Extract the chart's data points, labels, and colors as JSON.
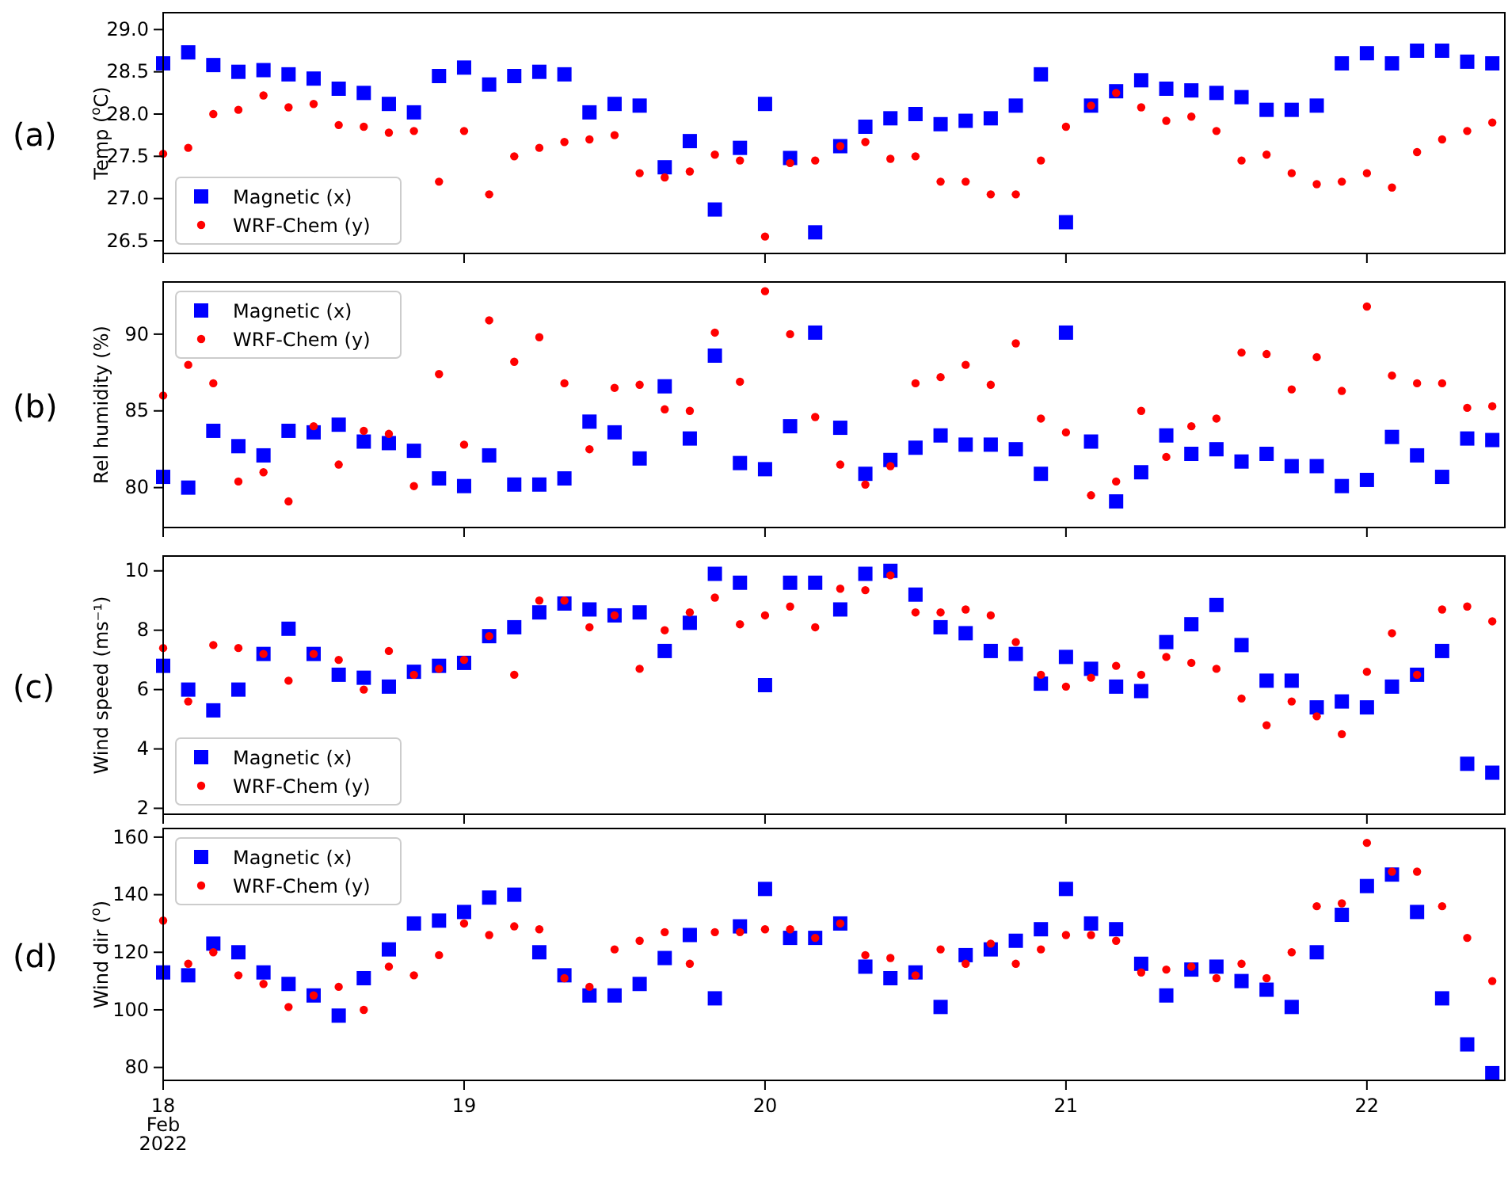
{
  "chart_data": [
    {
      "type": "scatter",
      "ylabel": "Temp ($^{o}$C)",
      "annotations": [
        "(a)"
      ],
      "legend": "bottom left",
      "tick_labels": "y",
      "x": [
        "2022-02-18T00:00",
        "2022-02-18T02:00",
        "2022-02-18T04:00",
        "2022-02-18T06:00",
        "2022-02-18T08:00",
        "2022-02-18T10:00",
        "2022-02-18T12:00",
        "2022-02-18T14:00",
        "2022-02-18T16:00",
        "2022-02-18T18:00",
        "2022-02-18T20:00",
        "2022-02-18T22:00",
        "2022-02-19T00:00",
        "2022-02-19T02:00",
        "2022-02-19T04:00",
        "2022-02-19T06:00",
        "2022-02-19T08:00",
        "2022-02-19T10:00",
        "2022-02-19T12:00",
        "2022-02-19T14:00",
        "2022-02-19T16:00",
        "2022-02-19T18:00",
        "2022-02-19T20:00",
        "2022-02-19T22:00",
        "2022-02-20T00:00",
        "2022-02-20T02:00",
        "2022-02-20T04:00",
        "2022-02-20T06:00",
        "2022-02-20T08:00",
        "2022-02-20T10:00",
        "2022-02-20T12:00",
        "2022-02-20T14:00",
        "2022-02-20T16:00",
        "2022-02-20T18:00",
        "2022-02-20T20:00",
        "2022-02-20T22:00",
        "2022-02-21T00:00",
        "2022-02-21T02:00",
        "2022-02-21T04:00",
        "2022-02-21T06:00",
        "2022-02-21T08:00",
        "2022-02-21T10:00",
        "2022-02-21T12:00",
        "2022-02-21T14:00",
        "2022-02-21T16:00",
        "2022-02-21T18:00",
        "2022-02-21T20:00",
        "2022-02-21T22:00",
        "2022-02-22T00:00",
        "2022-02-22T02:00",
        "2022-02-22T04:00",
        "2022-02-22T06:00",
        "2022-02-22T08:00",
        "2022-02-22T10:00"
      ],
      "xlim": [
        "2022-02-18T00:00",
        "2022-02-22T11:00"
      ],
      "xticks": [
        {
          "value": "2022-02-18",
          "label": null
        },
        {
          "value": "2022-02-19",
          "label": null
        },
        {
          "value": "2022-02-20",
          "label": null
        },
        {
          "value": "2022-02-21",
          "label": null
        },
        {
          "value": "2022-02-22",
          "label": null
        }
      ],
      "ylim": [
        26.35,
        29.2
      ],
      "yticks": [
        26.5,
        {
          "value": 27,
          "label": "27.0"
        },
        27.5,
        {
          "value": 28,
          "label": "28.0"
        },
        28.5,
        {
          "value": 29,
          "label": "29.0"
        }
      ],
      "series": [
        {
          "name": "Magnetic (x)",
          "color": "#0000ff",
          "marker": "square",
          "values": [
            28.6,
            28.73,
            28.58,
            28.5,
            28.52,
            28.47,
            28.42,
            28.3,
            28.25,
            28.12,
            28.02,
            28.45,
            28.55,
            28.35,
            28.45,
            28.5,
            28.47,
            28.02,
            28.12,
            28.1,
            27.37,
            27.68,
            26.87,
            27.6,
            28.12,
            27.48,
            26.6,
            27.62,
            27.85,
            27.95,
            28.0,
            27.88,
            27.92,
            27.95,
            28.1,
            28.47,
            26.72,
            28.1,
            28.27,
            28.4,
            28.3,
            28.28,
            28.25,
            28.2,
            28.05,
            28.05,
            28.1,
            28.6,
            28.72,
            28.6,
            28.75,
            28.75,
            28.62,
            28.6
          ]
        },
        {
          "name": "WRF-Chem (y)",
          "color": "#ff0000",
          "marker": "circle",
          "values": [
            27.53,
            27.6,
            28.0,
            28.05,
            28.22,
            28.08,
            28.12,
            27.87,
            27.85,
            27.78,
            27.8,
            27.2,
            27.8,
            27.05,
            27.5,
            27.6,
            27.67,
            27.7,
            27.75,
            27.3,
            27.25,
            27.32,
            27.52,
            27.45,
            26.55,
            27.42,
            27.45,
            27.62,
            27.67,
            27.47,
            27.5,
            27.2,
            27.2,
            27.05,
            27.05,
            27.45,
            27.85,
            28.1,
            28.25,
            28.08,
            27.92,
            27.97,
            27.8,
            27.45,
            27.52,
            27.3,
            27.17,
            27.2,
            27.3,
            27.13,
            27.55,
            27.7,
            27.8,
            27.9
          ]
        }
      ]
    },
    {
      "type": "scatter",
      "ylabel": "Rel humidity (%)",
      "annotations": [
        "(b)"
      ],
      "legend": "top left",
      "tick_labels": "y",
      "x": [
        "2022-02-18T00:00",
        "2022-02-18T02:00",
        "2022-02-18T04:00",
        "2022-02-18T06:00",
        "2022-02-18T08:00",
        "2022-02-18T10:00",
        "2022-02-18T12:00",
        "2022-02-18T14:00",
        "2022-02-18T16:00",
        "2022-02-18T18:00",
        "2022-02-18T20:00",
        "2022-02-18T22:00",
        "2022-02-19T00:00",
        "2022-02-19T02:00",
        "2022-02-19T04:00",
        "2022-02-19T06:00",
        "2022-02-19T08:00",
        "2022-02-19T10:00",
        "2022-02-19T12:00",
        "2022-02-19T14:00",
        "2022-02-19T16:00",
        "2022-02-19T18:00",
        "2022-02-19T20:00",
        "2022-02-19T22:00",
        "2022-02-20T00:00",
        "2022-02-20T02:00",
        "2022-02-20T04:00",
        "2022-02-20T06:00",
        "2022-02-20T08:00",
        "2022-02-20T10:00",
        "2022-02-20T12:00",
        "2022-02-20T14:00",
        "2022-02-20T16:00",
        "2022-02-20T18:00",
        "2022-02-20T20:00",
        "2022-02-20T22:00",
        "2022-02-21T00:00",
        "2022-02-21T02:00",
        "2022-02-21T04:00",
        "2022-02-21T06:00",
        "2022-02-21T08:00",
        "2022-02-21T10:00",
        "2022-02-21T12:00",
        "2022-02-21T14:00",
        "2022-02-21T16:00",
        "2022-02-21T18:00",
        "2022-02-21T20:00",
        "2022-02-21T22:00",
        "2022-02-22T00:00",
        "2022-02-22T02:00",
        "2022-02-22T04:00",
        "2022-02-22T06:00",
        "2022-02-22T08:00",
        "2022-02-22T10:00"
      ],
      "xlim": [
        "2022-02-18T00:00",
        "2022-02-22T11:00"
      ],
      "xticks": [
        {
          "value": "2022-02-18",
          "label": null
        },
        {
          "value": "2022-02-19",
          "label": null
        },
        {
          "value": "2022-02-20",
          "label": null
        },
        {
          "value": "2022-02-21",
          "label": null
        },
        {
          "value": "2022-02-22",
          "label": null
        }
      ],
      "ylim": [
        77.4,
        93.4
      ],
      "yticks": [
        80,
        85,
        90
      ],
      "series": [
        {
          "name": "Magnetic (x)",
          "color": "#0000ff",
          "marker": "square",
          "values": [
            80.7,
            80.0,
            83.7,
            82.7,
            82.1,
            83.7,
            83.6,
            84.1,
            83.0,
            82.9,
            82.4,
            80.6,
            80.1,
            82.1,
            80.2,
            80.2,
            80.6,
            84.3,
            83.6,
            81.9,
            86.6,
            83.2,
            88.6,
            81.6,
            81.2,
            84.0,
            90.1,
            83.9,
            80.9,
            81.8,
            82.6,
            83.4,
            82.8,
            82.8,
            82.5,
            80.9,
            90.1,
            83.0,
            79.1,
            81.0,
            83.4,
            82.2,
            82.5,
            81.7,
            82.2,
            81.4,
            81.4,
            80.1,
            80.5,
            83.3,
            82.1,
            80.7,
            83.2,
            83.1
          ]
        },
        {
          "name": "WRF-Chem (y)",
          "color": "#ff0000",
          "marker": "circle",
          "values": [
            86.0,
            88.0,
            86.8,
            80.4,
            81.0,
            79.1,
            84.0,
            81.5,
            83.7,
            83.5,
            80.1,
            87.4,
            82.8,
            90.9,
            88.2,
            89.8,
            86.8,
            82.5,
            86.5,
            86.7,
            85.1,
            85.0,
            90.1,
            86.9,
            92.8,
            90.0,
            84.6,
            81.5,
            80.2,
            81.4,
            86.8,
            87.2,
            88.0,
            86.7,
            89.4,
            84.5,
            83.6,
            79.5,
            80.4,
            85.0,
            82.0,
            84.0,
            84.5,
            88.8,
            88.7,
            86.4,
            88.5,
            86.3,
            91.8,
            87.3,
            86.8,
            86.8,
            85.2,
            85.3
          ]
        }
      ]
    },
    {
      "type": "scatter",
      "ylabel": "Wind speed (ms⁻¹)",
      "annotations": [
        "(c)"
      ],
      "legend": "bottom left",
      "tick_labels": "y",
      "x": [
        "2022-02-18T00:00",
        "2022-02-18T02:00",
        "2022-02-18T04:00",
        "2022-02-18T06:00",
        "2022-02-18T08:00",
        "2022-02-18T10:00",
        "2022-02-18T12:00",
        "2022-02-18T14:00",
        "2022-02-18T16:00",
        "2022-02-18T18:00",
        "2022-02-18T20:00",
        "2022-02-18T22:00",
        "2022-02-19T00:00",
        "2022-02-19T02:00",
        "2022-02-19T04:00",
        "2022-02-19T06:00",
        "2022-02-19T08:00",
        "2022-02-19T10:00",
        "2022-02-19T12:00",
        "2022-02-19T14:00",
        "2022-02-19T16:00",
        "2022-02-19T18:00",
        "2022-02-19T20:00",
        "2022-02-19T22:00",
        "2022-02-20T00:00",
        "2022-02-20T02:00",
        "2022-02-20T04:00",
        "2022-02-20T06:00",
        "2022-02-20T08:00",
        "2022-02-20T10:00",
        "2022-02-20T12:00",
        "2022-02-20T14:00",
        "2022-02-20T16:00",
        "2022-02-20T18:00",
        "2022-02-20T20:00",
        "2022-02-20T22:00",
        "2022-02-21T00:00",
        "2022-02-21T02:00",
        "2022-02-21T04:00",
        "2022-02-21T06:00",
        "2022-02-21T08:00",
        "2022-02-21T10:00",
        "2022-02-21T12:00",
        "2022-02-21T14:00",
        "2022-02-21T16:00",
        "2022-02-21T18:00",
        "2022-02-21T20:00",
        "2022-02-21T22:00",
        "2022-02-22T00:00",
        "2022-02-22T02:00",
        "2022-02-22T04:00",
        "2022-02-22T06:00",
        "2022-02-22T08:00",
        "2022-02-22T10:00"
      ],
      "xlim": [
        "2022-02-18T00:00",
        "2022-02-22T11:00"
      ],
      "xticks": [
        {
          "value": "2022-02-18",
          "label": null
        },
        {
          "value": "2022-02-19",
          "label": null
        },
        {
          "value": "2022-02-20",
          "label": null
        },
        {
          "value": "2022-02-21",
          "label": null
        },
        {
          "value": "2022-02-22",
          "label": null
        }
      ],
      "ylim": [
        1.8,
        10.5
      ],
      "yticks": [
        2,
        4,
        6,
        8,
        10
      ],
      "series": [
        {
          "name": "Magnetic (x)",
          "color": "#0000ff",
          "marker": "square",
          "values": [
            6.8,
            6.0,
            5.3,
            6.0,
            7.2,
            8.05,
            7.2,
            6.5,
            6.4,
            6.1,
            6.6,
            6.8,
            6.9,
            7.8,
            8.1,
            8.6,
            8.9,
            8.7,
            8.5,
            8.6,
            7.3,
            8.25,
            9.9,
            9.6,
            6.15,
            9.6,
            9.6,
            8.7,
            9.9,
            10.0,
            9.2,
            8.1,
            7.9,
            7.3,
            7.2,
            6.2,
            7.1,
            6.7,
            6.1,
            5.95,
            7.6,
            8.2,
            8.85,
            7.5,
            6.3,
            6.3,
            5.4,
            5.6,
            5.4,
            6.1,
            6.5,
            7.3,
            3.5,
            3.2
          ]
        },
        {
          "name": "WRF-Chem (y)",
          "color": "#ff0000",
          "marker": "circle",
          "values": [
            7.4,
            5.6,
            7.5,
            7.4,
            7.2,
            6.3,
            7.2,
            7.0,
            6.0,
            7.3,
            6.5,
            6.7,
            7.0,
            7.8,
            6.5,
            9.0,
            9.0,
            8.1,
            8.5,
            6.7,
            8.0,
            8.6,
            9.1,
            8.2,
            8.5,
            8.8,
            8.1,
            9.4,
            9.35,
            9.85,
            8.6,
            8.6,
            8.7,
            8.5,
            7.6,
            6.5,
            6.1,
            6.4,
            6.8,
            6.5,
            7.1,
            6.9,
            6.7,
            5.7,
            4.8,
            5.6,
            5.1,
            4.5,
            6.6,
            7.9,
            6.5,
            8.7,
            8.8,
            8.3
          ]
        }
      ]
    },
    {
      "type": "scatter",
      "ylabel": "Wind dir ($^{o}$)",
      "annotations": [
        "(d)"
      ],
      "legend": "top left",
      "x": [
        "2022-02-18T00:00",
        "2022-02-18T02:00",
        "2022-02-18T04:00",
        "2022-02-18T06:00",
        "2022-02-18T08:00",
        "2022-02-18T10:00",
        "2022-02-18T12:00",
        "2022-02-18T14:00",
        "2022-02-18T16:00",
        "2022-02-18T18:00",
        "2022-02-18T20:00",
        "2022-02-18T22:00",
        "2022-02-19T00:00",
        "2022-02-19T02:00",
        "2022-02-19T04:00",
        "2022-02-19T06:00",
        "2022-02-19T08:00",
        "2022-02-19T10:00",
        "2022-02-19T12:00",
        "2022-02-19T14:00",
        "2022-02-19T16:00",
        "2022-02-19T18:00",
        "2022-02-19T20:00",
        "2022-02-19T22:00",
        "2022-02-20T00:00",
        "2022-02-20T02:00",
        "2022-02-20T04:00",
        "2022-02-20T06:00",
        "2022-02-20T08:00",
        "2022-02-20T10:00",
        "2022-02-20T12:00",
        "2022-02-20T14:00",
        "2022-02-20T16:00",
        "2022-02-20T18:00",
        "2022-02-20T20:00",
        "2022-02-20T22:00",
        "2022-02-21T00:00",
        "2022-02-21T02:00",
        "2022-02-21T04:00",
        "2022-02-21T06:00",
        "2022-02-21T08:00",
        "2022-02-21T10:00",
        "2022-02-21T12:00",
        "2022-02-21T14:00",
        "2022-02-21T16:00",
        "2022-02-21T18:00",
        "2022-02-21T20:00",
        "2022-02-21T22:00",
        "2022-02-22T00:00",
        "2022-02-22T02:00",
        "2022-02-22T04:00",
        "2022-02-22T06:00",
        "2022-02-22T08:00",
        "2022-02-22T10:00"
      ],
      "xlim": [
        "2022-02-18T00:00",
        "2022-02-22T11:00"
      ],
      "xticks": [
        {
          "value": "2022-02-18",
          "label": "18 Feb 2022"
        },
        {
          "value": "2022-02-19",
          "label": "19"
        },
        {
          "value": "2022-02-20",
          "label": "20"
        },
        {
          "value": "2022-02-21",
          "label": "21"
        },
        {
          "value": "2022-02-22",
          "label": "22"
        }
      ],
      "ylim": [
        75.5,
        163
      ],
      "yticks": [
        80,
        100,
        120,
        140,
        160
      ],
      "series": [
        {
          "name": "Magnetic (x)",
          "color": "#0000ff",
          "marker": "square",
          "values": [
            113,
            112,
            123,
            120,
            113,
            109,
            105,
            98,
            111,
            121,
            130,
            131,
            134,
            139,
            140,
            120,
            112,
            105,
            105,
            109,
            118,
            126,
            104,
            129,
            142,
            125,
            125,
            130,
            115,
            111,
            113,
            101,
            119,
            121,
            124,
            128,
            142,
            130,
            128,
            116,
            105,
            114,
            115,
            110,
            107,
            101,
            120,
            133,
            143,
            147,
            134,
            104,
            88,
            78
          ]
        },
        {
          "name": "WRF-Chem (y)",
          "color": "#ff0000",
          "marker": "circle",
          "values": [
            131,
            116,
            120,
            112,
            109,
            101,
            105,
            108,
            100,
            115,
            112,
            119,
            130,
            126,
            129,
            128,
            111,
            108,
            121,
            124,
            127,
            116,
            127,
            127,
            128,
            128,
            125,
            130,
            119,
            118,
            112,
            121,
            116,
            123,
            116,
            121,
            126,
            126,
            124,
            113,
            114,
            115,
            111,
            116,
            111,
            120,
            136,
            137,
            158,
            148,
            148,
            136,
            125,
            110
          ]
        }
      ]
    }
  ]
}
